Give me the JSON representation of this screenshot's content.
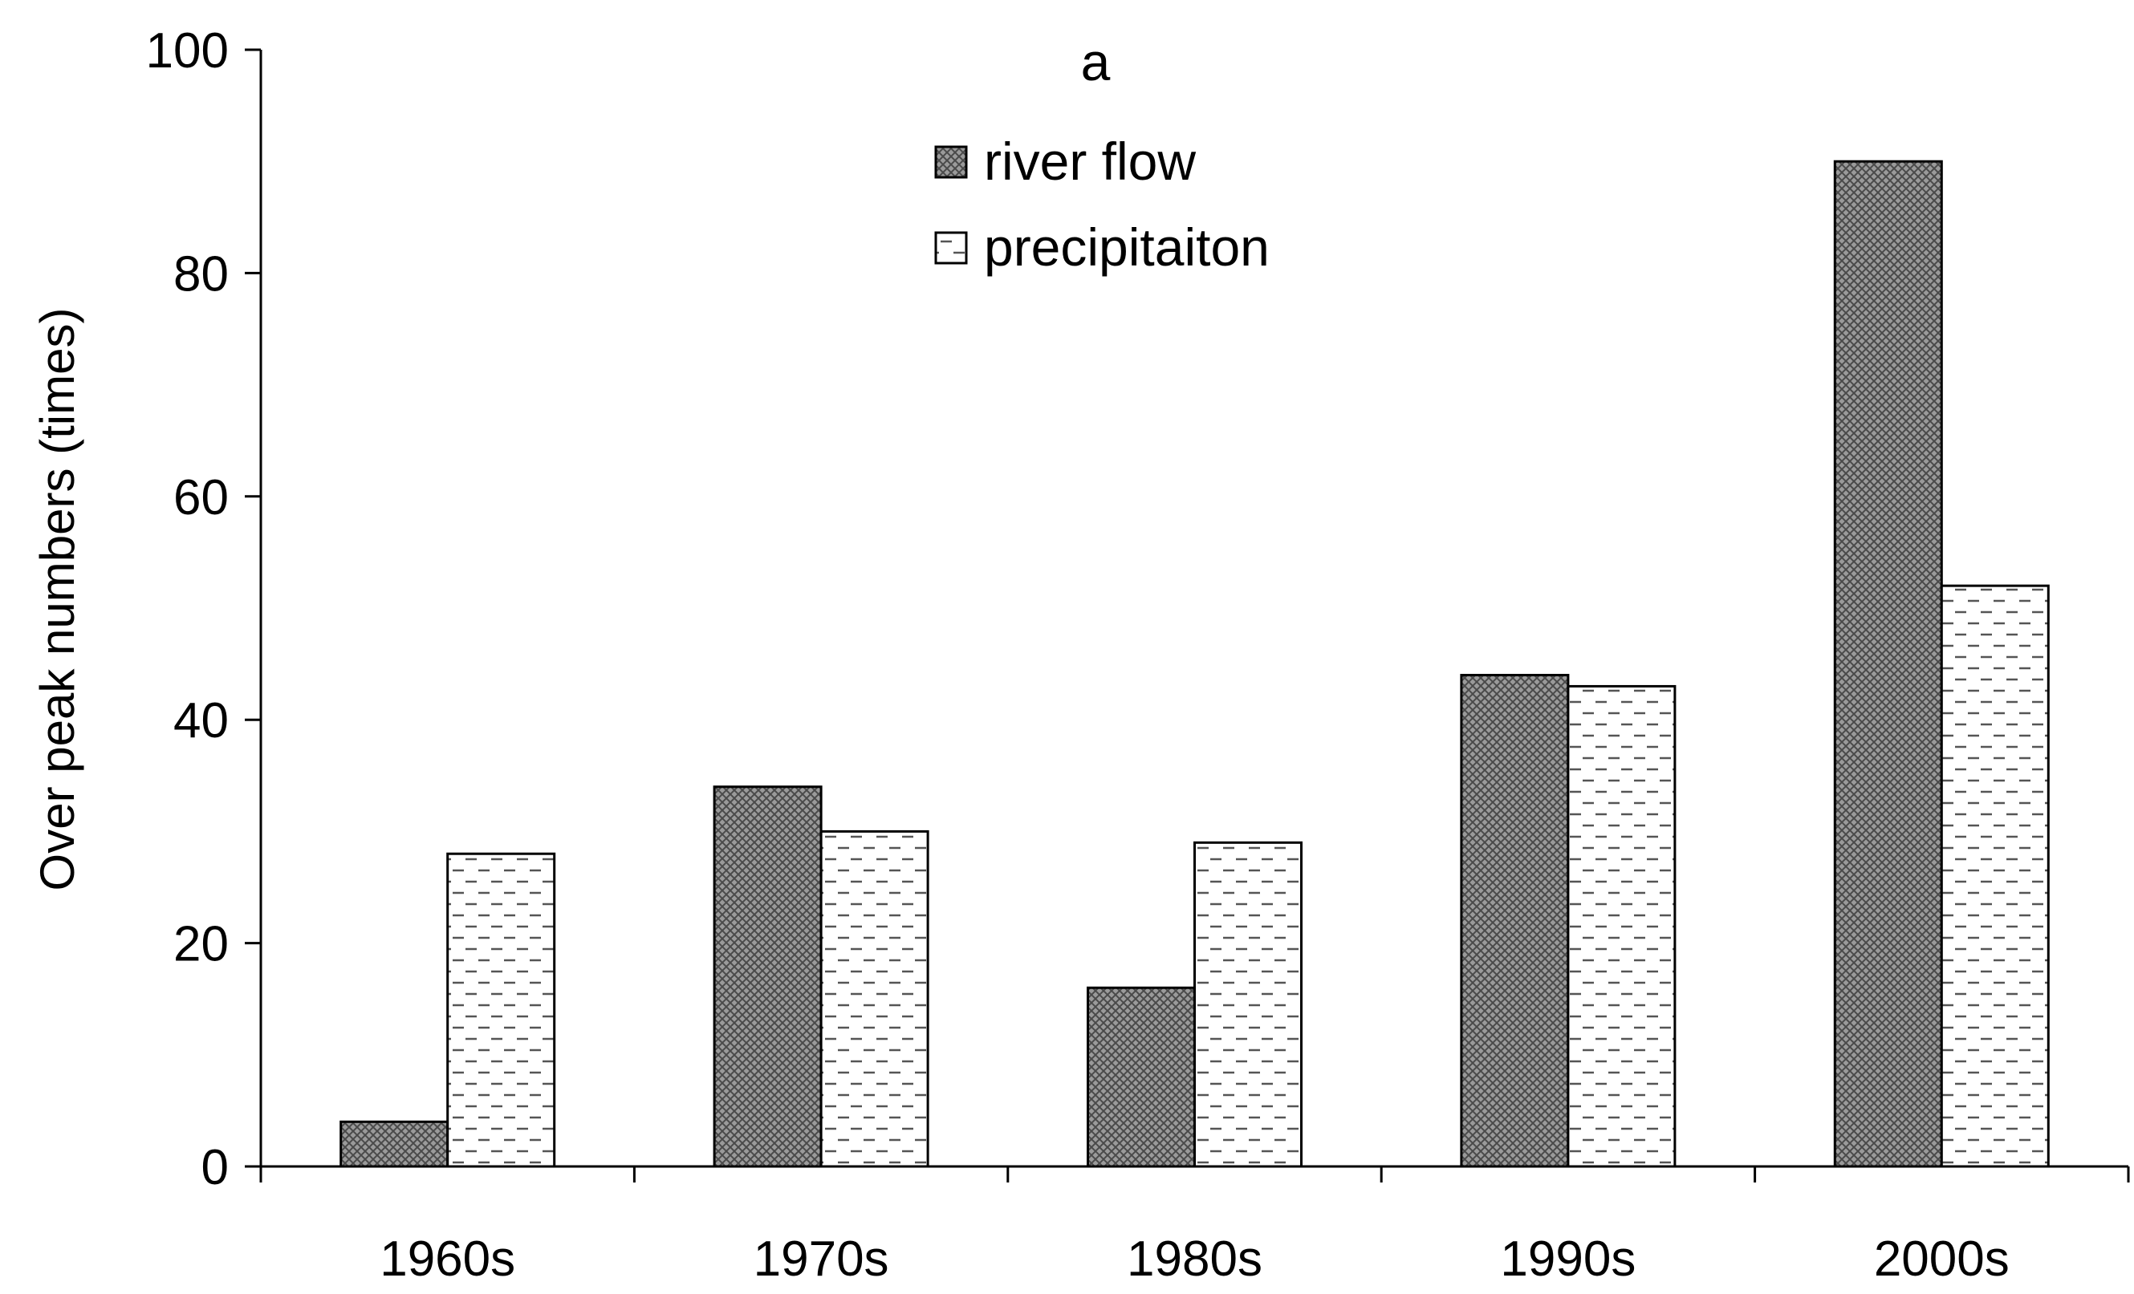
{
  "chart_data": {
    "type": "bar",
    "title": "a",
    "xlabel": "",
    "ylabel": "Over peak numbers (times)",
    "categories": [
      "1960s",
      "1970s",
      "1980s",
      "1990s",
      "2000s"
    ],
    "ylim": [
      0,
      100
    ],
    "yticks": [
      0,
      20,
      40,
      60,
      80,
      100
    ],
    "grid": false,
    "legend_position": "top-center",
    "series": [
      {
        "name": "river flow",
        "values": [
          4,
          34,
          16,
          44,
          90
        ],
        "pattern": "crosshatch-gray"
      },
      {
        "name": "precipitaiton",
        "values": [
          28,
          30,
          29,
          43,
          52
        ],
        "pattern": "dashed-white"
      }
    ]
  }
}
